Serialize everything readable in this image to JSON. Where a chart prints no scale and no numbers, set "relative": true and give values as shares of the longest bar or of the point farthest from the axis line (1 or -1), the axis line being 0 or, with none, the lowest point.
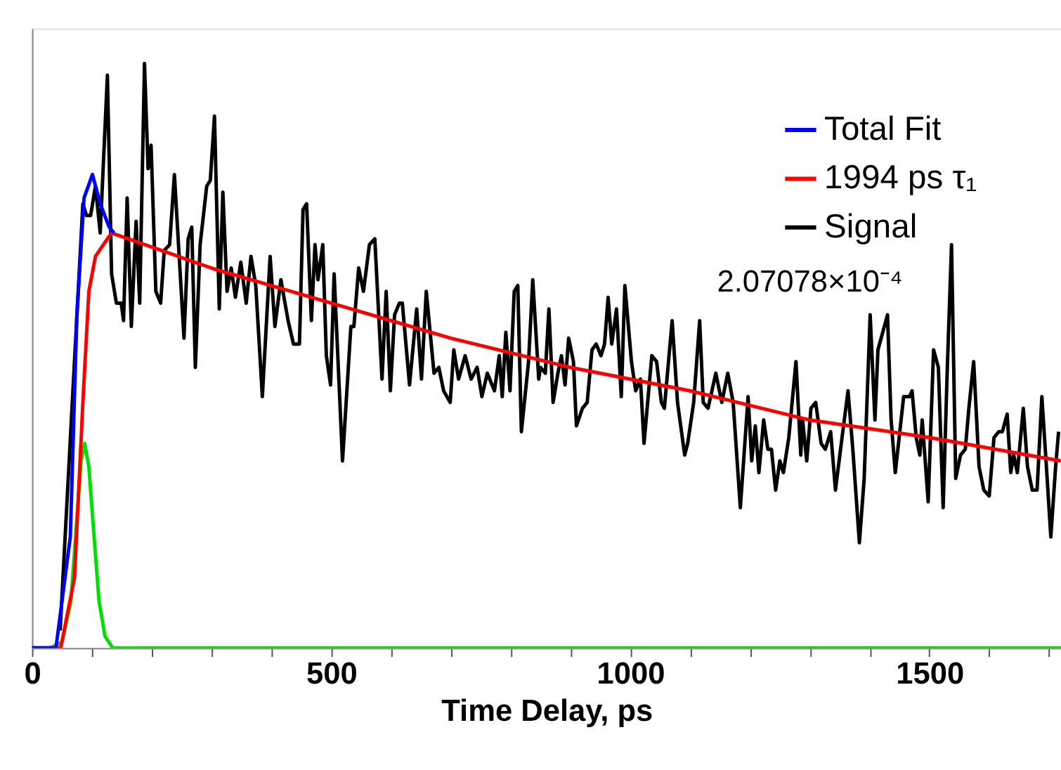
{
  "chart_data": {
    "type": "line",
    "xlabel": "Time Delay, ps",
    "relative": true,
    "legend": "top right",
    "xlim": [
      0,
      1720
    ],
    "xticks": [
      0,
      {
        "value": 100,
        "label": null
      },
      {
        "value": 200,
        "label": null
      },
      {
        "value": 300,
        "label": null
      },
      {
        "value": 400,
        "label": null
      },
      500,
      {
        "value": 600,
        "label": null
      },
      {
        "value": 700,
        "label": null
      },
      {
        "value": 800,
        "label": null
      },
      {
        "value": 900,
        "label": null
      },
      1000,
      {
        "value": 1100,
        "label": null
      },
      {
        "value": 1200,
        "label": null
      },
      {
        "value": 1300,
        "label": null
      },
      {
        "value": 1400,
        "label": null
      },
      1500,
      {
        "value": 1600,
        "label": null
      },
      {
        "value": 1700,
        "label": null
      }
    ],
    "annotations": [
      "2.07078×10⁻⁴"
    ],
    "series": [
      {
        "name": "Total Fit",
        "color": "#0000ff",
        "x": [
          0,
          40,
          64,
          75,
          87,
          101,
          114,
          129,
          137
        ],
        "values": [
          0,
          0,
          0.19,
          0.57,
          0.77,
          0.81,
          0.76,
          0.72,
          0.71
        ]
      },
      {
        "name": "1994 ps τ₁",
        "color": "#ff0000",
        "x": [
          0,
          48,
          71,
          85,
          95,
          106,
          126,
          133,
          300,
          500,
          700,
          900,
          1100,
          1300,
          1500,
          1720
        ],
        "values": [
          0,
          0,
          0.12,
          0.42,
          0.61,
          0.67,
          0.7,
          0.71,
          0.65,
          0.59,
          0.53,
          0.48,
          0.44,
          0.39,
          0.36,
          0.32
        ]
      },
      {
        "name": "Signal",
        "color": "#000000",
        "x": [
          47,
          85,
          91,
          98,
          106,
          114,
          126,
          133,
          141,
          149,
          153,
          159,
          166,
          174,
          180,
          188,
          194,
          199,
          207,
          215,
          221,
          230,
          238,
          254,
          261,
          267,
          273,
          281,
          292,
          298,
          305,
          313,
          319,
          326,
          333,
          340,
          349,
          358,
          366,
          374,
          385,
          398,
          406,
          416,
          428,
          437,
          447,
          453,
          459,
          467,
          473,
          478,
          486,
          492,
          499,
          505,
          519,
          533,
          538,
          546,
          554,
          564,
          573,
          585,
          592,
          599,
          606,
          614,
          619,
          631,
          643,
          651,
          659,
          672,
          680,
          688,
          699,
          705,
          713,
          724,
          734,
          744,
          752,
          761,
          773,
          781,
          786,
          792,
          799,
          806,
          812,
          818,
          830,
          837,
          847,
          850,
          858,
          864,
          871,
          879,
          885,
          891,
          897,
          905,
          910,
          920,
          928,
          936,
          943,
          951,
          957,
          963,
          969,
          977,
          985,
          991,
          1002,
          1009,
          1017,
          1023,
          1036,
          1044,
          1052,
          1057,
          1070,
          1079,
          1091,
          1096,
          1106,
          1116,
          1122,
          1130,
          1143,
          1153,
          1163,
          1172,
          1184,
          1197,
          1203,
          1209,
          1215,
          1223,
          1230,
          1236,
          1243,
          1250,
          1256,
          1265,
          1277,
          1285,
          1288,
          1295,
          1302,
          1310,
          1319,
          1326,
          1335,
          1343,
          1354,
          1364,
          1372,
          1383,
          1391,
          1401,
          1409,
          1414,
          1430,
          1436,
          1443,
          1457,
          1467,
          1471,
          1478,
          1484,
          1488,
          1498,
          1507,
          1515,
          1523,
          1530,
          1537,
          1544,
          1552,
          1560,
          1566,
          1574,
          1583,
          1591,
          1600,
          1608,
          1616,
          1622,
          1630,
          1636,
          1641,
          1647,
          1657,
          1664,
          1672,
          1680,
          1688,
          1695,
          1703,
          1711,
          1716
        ],
        "values": [
          0.03,
          0.76,
          0.74,
          0.74,
          0.79,
          0.71,
          0.98,
          0.64,
          0.59,
          0.59,
          0.56,
          0.77,
          0.55,
          0.73,
          0.59,
          1.0,
          0.82,
          0.86,
          0.61,
          0.59,
          0.68,
          0.69,
          0.81,
          0.53,
          0.7,
          0.72,
          0.48,
          0.69,
          0.79,
          0.8,
          0.91,
          0.58,
          0.78,
          0.61,
          0.65,
          0.6,
          0.66,
          0.59,
          0.67,
          0.62,
          0.43,
          0.67,
          0.55,
          0.63,
          0.56,
          0.52,
          0.52,
          0.75,
          0.76,
          0.56,
          0.69,
          0.63,
          0.69,
          0.5,
          0.45,
          0.64,
          0.32,
          0.55,
          0.55,
          0.65,
          0.61,
          0.69,
          0.7,
          0.46,
          0.61,
          0.44,
          0.57,
          0.59,
          0.59,
          0.45,
          0.58,
          0.46,
          0.61,
          0.47,
          0.48,
          0.44,
          0.42,
          0.51,
          0.46,
          0.5,
          0.46,
          0.48,
          0.43,
          0.47,
          0.44,
          0.5,
          0.43,
          0.54,
          0.44,
          0.61,
          0.62,
          0.37,
          0.49,
          0.63,
          0.46,
          0.48,
          0.47,
          0.58,
          0.42,
          0.47,
          0.5,
          0.45,
          0.53,
          0.49,
          0.38,
          0.41,
          0.42,
          0.51,
          0.52,
          0.5,
          0.52,
          0.6,
          0.52,
          0.58,
          0.43,
          0.62,
          0.49,
          0.44,
          0.46,
          0.35,
          0.5,
          0.49,
          0.42,
          0.41,
          0.56,
          0.42,
          0.33,
          0.35,
          0.42,
          0.56,
          0.42,
          0.41,
          0.47,
          0.42,
          0.47,
          0.42,
          0.24,
          0.43,
          0.32,
          0.38,
          0.3,
          0.39,
          0.34,
          0.34,
          0.27,
          0.32,
          0.3,
          0.36,
          0.49,
          0.33,
          0.39,
          0.32,
          0.41,
          0.42,
          0.35,
          0.34,
          0.37,
          0.27,
          0.36,
          0.44,
          0.34,
          0.18,
          0.29,
          0.57,
          0.39,
          0.51,
          0.57,
          0.39,
          0.3,
          0.43,
          0.43,
          0.44,
          0.36,
          0.33,
          0.39,
          0.25,
          0.51,
          0.48,
          0.24,
          0.48,
          0.69,
          0.29,
          0.33,
          0.34,
          0.41,
          0.49,
          0.31,
          0.27,
          0.26,
          0.36,
          0.37,
          0.37,
          0.4,
          0.3,
          0.33,
          0.3,
          0.41,
          0.31,
          0.27,
          0.27,
          0.43,
          0.32,
          0.19,
          0.31,
          0.37
        ]
      },
      {
        "color": "#00e000",
        "x": [
          0,
          30,
          50,
          65,
          75,
          82,
          88,
          95,
          103,
          112,
          122,
          135,
          1720
        ],
        "values": [
          0,
          0,
          0.01,
          0.08,
          0.22,
          0.32,
          0.35,
          0.31,
          0.2,
          0.08,
          0.02,
          0,
          0
        ]
      }
    ]
  }
}
